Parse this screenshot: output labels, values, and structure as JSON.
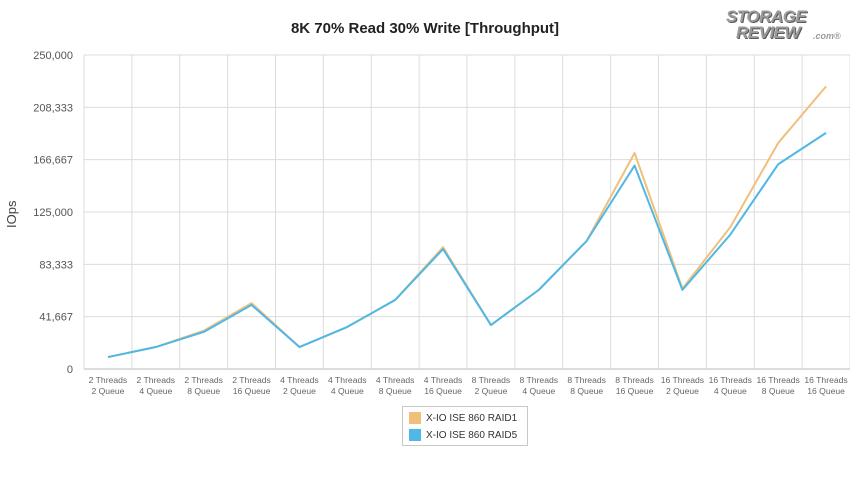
{
  "logo": {
    "line1": "STORAGE",
    "line2": "REVIEW",
    "suffix": ".com®"
  },
  "chart_data": {
    "type": "line",
    "title": "8K 70% Read 30% Write [Throughput]",
    "ylabel": "IOps",
    "xlabel": "",
    "ylim": [
      0,
      250000
    ],
    "yticks": [
      "0",
      "41,667",
      "83,333",
      "125,000",
      "166,667",
      "208,333",
      "250,000"
    ],
    "grid": true,
    "legend_position": "bottom-center",
    "categories": [
      [
        "2 Threads",
        "2 Queue"
      ],
      [
        "2 Threads",
        "4 Queue"
      ],
      [
        "2 Threads",
        "8 Queue"
      ],
      [
        "2 Threads",
        "16 Queue"
      ],
      [
        "4 Threads",
        "2 Queue"
      ],
      [
        "4 Threads",
        "4 Queue"
      ],
      [
        "4 Threads",
        "8 Queue"
      ],
      [
        "4 Threads",
        "16 Queue"
      ],
      [
        "8 Threads",
        "2 Queue"
      ],
      [
        "8 Threads",
        "4 Queue"
      ],
      [
        "8 Threads",
        "8 Queue"
      ],
      [
        "8 Threads",
        "16 Queue"
      ],
      [
        "16 Threads",
        "2 Queue"
      ],
      [
        "16 Threads",
        "4 Queue"
      ],
      [
        "16 Threads",
        "8 Queue"
      ],
      [
        "16 Threads",
        "16 Queue"
      ]
    ],
    "series": [
      {
        "name": "X-IO ISE 860 RAID1",
        "color": "#f0c07a",
        "values": [
          9500,
          17500,
          30500,
          52500,
          17500,
          33500,
          55000,
          97000,
          35000,
          63000,
          102000,
          172000,
          64000,
          113000,
          180000,
          225000
        ]
      },
      {
        "name": "X-IO ISE 860 RAID5",
        "color": "#4fb8e6",
        "values": [
          9500,
          17500,
          29500,
          51000,
          17500,
          33500,
          55000,
          95500,
          35000,
          63000,
          102000,
          162000,
          63000,
          107000,
          163000,
          188000
        ]
      }
    ]
  }
}
